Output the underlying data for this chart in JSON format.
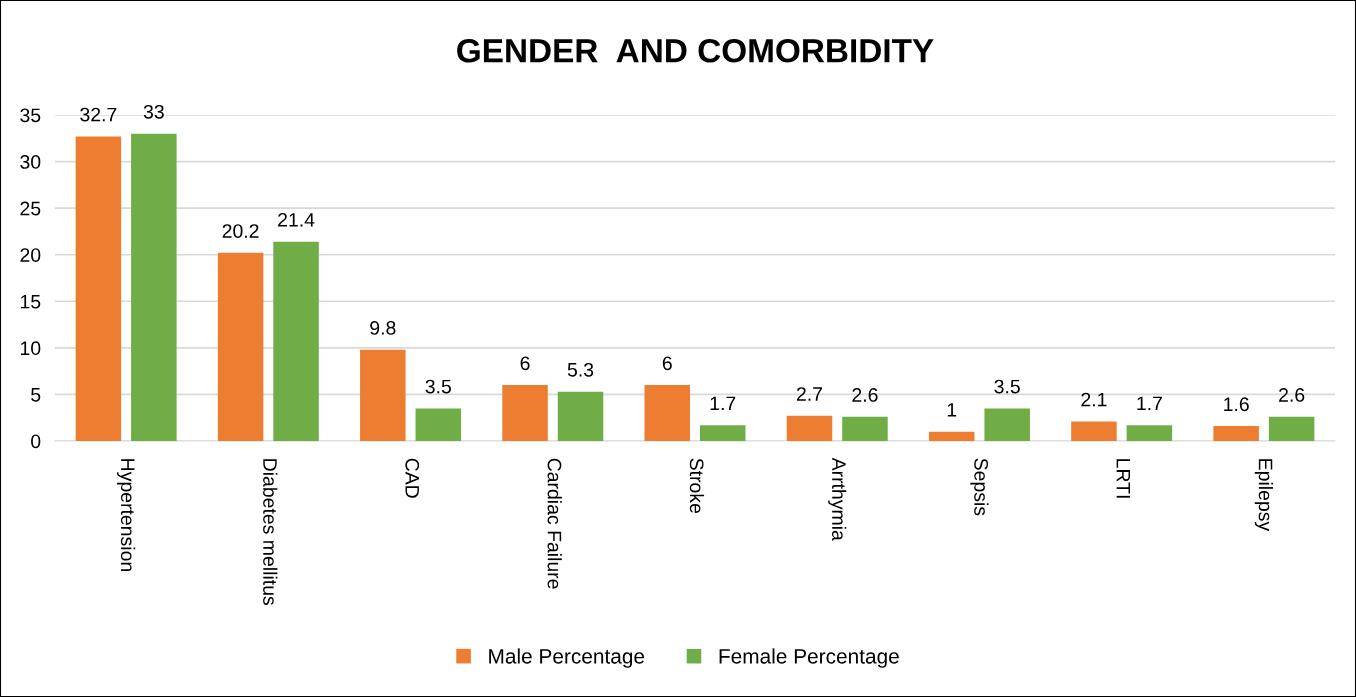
{
  "chart_data": {
    "type": "bar",
    "title": "GENDER  AND COMORBIDITY",
    "categories": [
      "Hypertension",
      "Diabetes mellitus",
      "CAD",
      "Cardiac Failure",
      "Stroke",
      "Arrthymia",
      "Sepsis",
      "LRTI",
      "Epilepsy"
    ],
    "series": [
      {
        "name": "Male Percentage",
        "color": "#ed7d31",
        "values": [
          32.7,
          20.2,
          9.8,
          6,
          6,
          2.7,
          1,
          2.1,
          1.6
        ]
      },
      {
        "name": "Female Percentage",
        "color": "#70ad47",
        "values": [
          33,
          21.4,
          3.5,
          5.3,
          1.7,
          2.6,
          3.5,
          1.7,
          2.6
        ]
      }
    ],
    "ylim": [
      0,
      35
    ],
    "yticks": [
      0,
      5,
      10,
      15,
      20,
      25,
      30,
      35
    ],
    "grid": "y",
    "legend": "bottom",
    "data_labels": true
  }
}
